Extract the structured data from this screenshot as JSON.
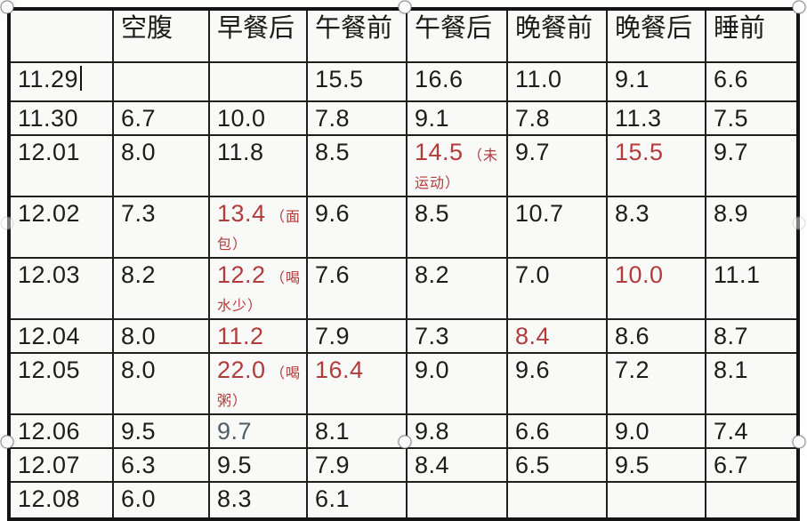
{
  "colors": {
    "accent_red": "#b23b3b",
    "muted_blue": "#4f5d68",
    "text": "#1c1c1c",
    "border": "#1f1f1f"
  },
  "table": {
    "columns": [
      "",
      "空腹",
      "早餐后",
      "午餐前",
      "午餐后",
      "晚餐前",
      "晚餐后",
      "睡前"
    ],
    "rows": [
      {
        "date": "11.29",
        "cursor": true,
        "cells": [
          {
            "v": ""
          },
          {
            "v": ""
          },
          {
            "v": "15.5"
          },
          {
            "v": "16.6"
          },
          {
            "v": "11.0"
          },
          {
            "v": "9.1"
          },
          {
            "v": "6.6"
          }
        ]
      },
      {
        "date": "11.30",
        "cells": [
          {
            "v": "6.7"
          },
          {
            "v": "10.0"
          },
          {
            "v": "7.8"
          },
          {
            "v": "9.1"
          },
          {
            "v": "7.8"
          },
          {
            "v": "11.3"
          },
          {
            "v": "7.5"
          }
        ]
      },
      {
        "date": "12.01",
        "cells": [
          {
            "v": "8.0"
          },
          {
            "v": "11.8"
          },
          {
            "v": "8.5"
          },
          {
            "v": "14.5",
            "red": true,
            "note": "（未运动）"
          },
          {
            "v": "9.7"
          },
          {
            "v": "15.5",
            "red": true
          },
          {
            "v": "9.7"
          }
        ]
      },
      {
        "date": "12.02",
        "cells": [
          {
            "v": "7.3"
          },
          {
            "v": "13.4",
            "red": true,
            "note": "（面包）"
          },
          {
            "v": "9.6"
          },
          {
            "v": "8.5"
          },
          {
            "v": "10.7"
          },
          {
            "v": "8.3"
          },
          {
            "v": "8.9"
          }
        ]
      },
      {
        "date": "12.03",
        "cells": [
          {
            "v": "8.2"
          },
          {
            "v": "12.2",
            "red": true,
            "note": "（喝水少）"
          },
          {
            "v": "7.6"
          },
          {
            "v": "8.2"
          },
          {
            "v": "7.0"
          },
          {
            "v": "10.0",
            "red": true
          },
          {
            "v": "11.1"
          }
        ]
      },
      {
        "date": "12.04",
        "cells": [
          {
            "v": "8.0"
          },
          {
            "v": "11.2",
            "red": true
          },
          {
            "v": "7.9"
          },
          {
            "v": "7.3"
          },
          {
            "v": "8.4",
            "red": true
          },
          {
            "v": "8.6"
          },
          {
            "v": "8.7"
          }
        ]
      },
      {
        "date": "12.05",
        "cells": [
          {
            "v": "8.0"
          },
          {
            "v": "22.0",
            "red": true,
            "note": "（喝粥）"
          },
          {
            "v": "16.4",
            "red": true
          },
          {
            "v": "9.0"
          },
          {
            "v": "9.6"
          },
          {
            "v": "7.2"
          },
          {
            "v": "8.1"
          }
        ]
      },
      {
        "date": "12.06",
        "cells": [
          {
            "v": "9.5"
          },
          {
            "v": "9.7",
            "blue": true
          },
          {
            "v": "8.1"
          },
          {
            "v": "9.8"
          },
          {
            "v": "6.6"
          },
          {
            "v": "9.0"
          },
          {
            "v": "7.4"
          }
        ]
      },
      {
        "date": "12.07",
        "cells": [
          {
            "v": "6.3"
          },
          {
            "v": "9.5"
          },
          {
            "v": "7.9"
          },
          {
            "v": "8.4"
          },
          {
            "v": "6.5"
          },
          {
            "v": "9.5"
          },
          {
            "v": "6.7"
          }
        ]
      },
      {
        "date": "12.08",
        "cells": [
          {
            "v": "6.0"
          },
          {
            "v": "8.3"
          },
          {
            "v": "6.1"
          },
          {
            "v": ""
          },
          {
            "v": ""
          },
          {
            "v": ""
          },
          {
            "v": ""
          }
        ]
      }
    ]
  }
}
